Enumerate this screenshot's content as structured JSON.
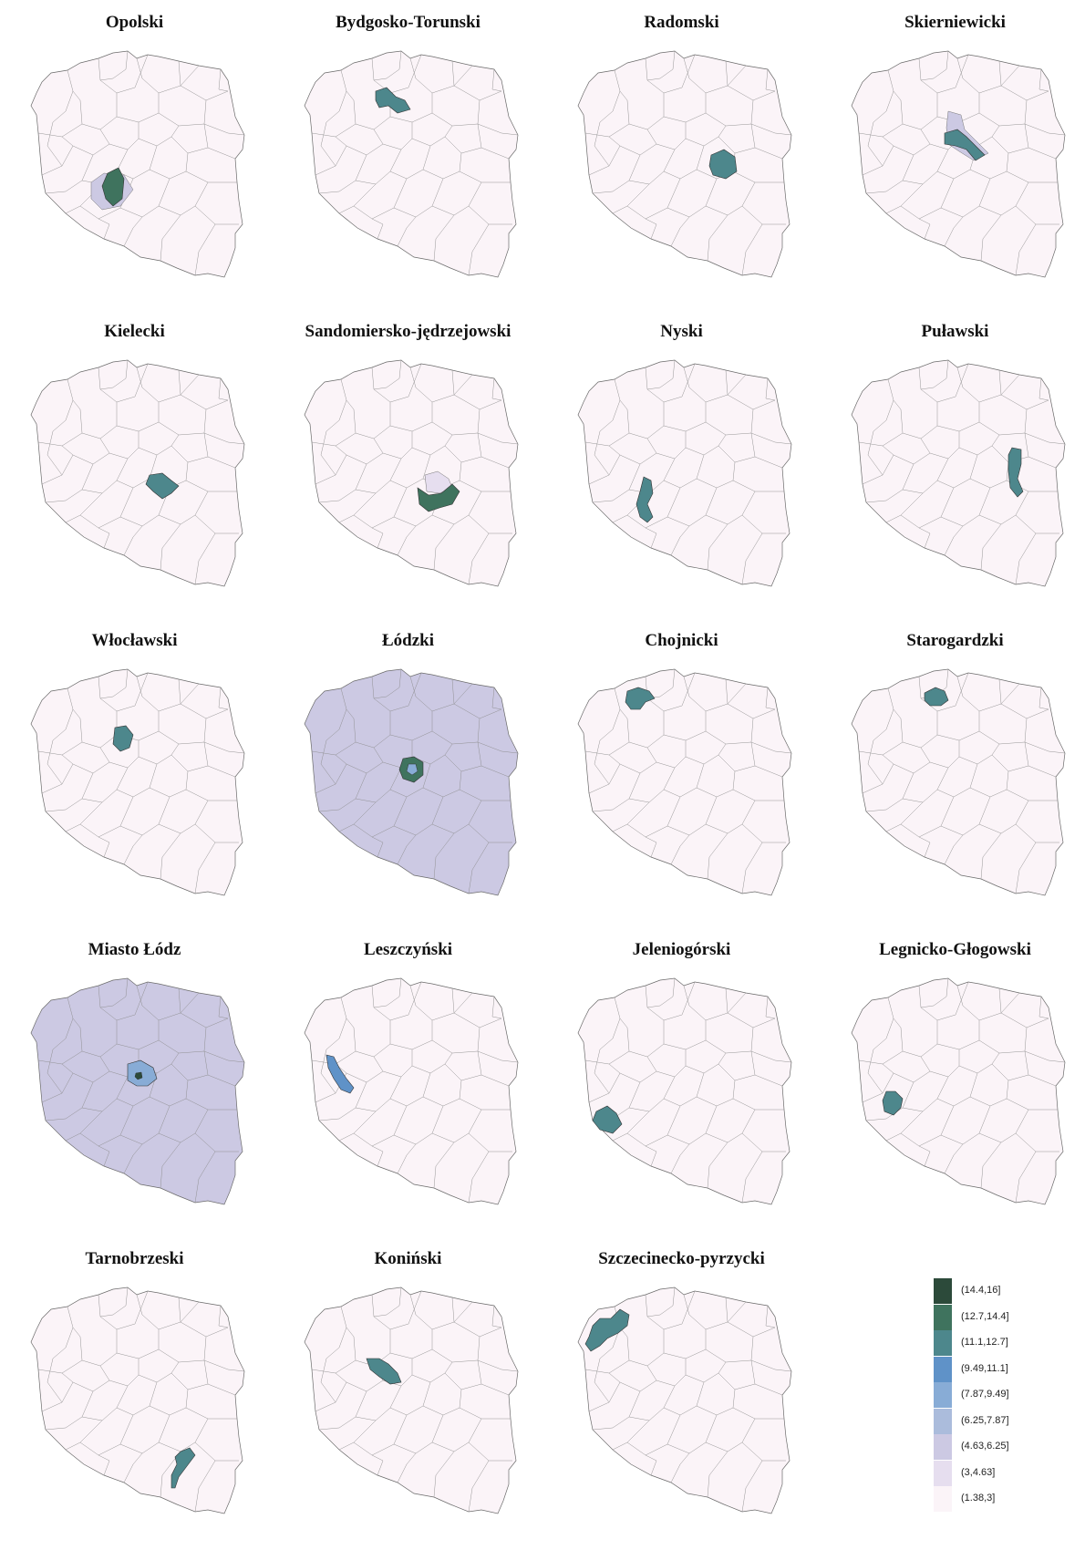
{
  "palette": [
    "#fbf4f8",
    "#e6deef",
    "#ccc9e3",
    "#abbcdc",
    "#88acd6",
    "#5f92c8",
    "#4d878c",
    "#3f735e",
    "#2c4a3a"
  ],
  "legend": {
    "labels": [
      "(14.4,16]",
      "(12.7,14.4]",
      "(11.1,12.7]",
      "(9.49,11.1]",
      "(7.87,9.49]",
      "(6.25,7.87]",
      "(4.63,6.25]",
      "(3,4.63]",
      "(1.38,3]"
    ]
  },
  "panels": [
    {
      "title": "Opolski",
      "background": 0,
      "highlight": {
        "shape": "opolski",
        "class": 7
      },
      "ring": {
        "shape": "ring_opolski",
        "class": 2
      }
    },
    {
      "title": "Bydgosko-Torunski",
      "background": 0,
      "highlight": {
        "shape": "bydgosko",
        "class": 6
      }
    },
    {
      "title": "Radomski",
      "background": 0,
      "highlight": {
        "shape": "radomski",
        "class": 6
      }
    },
    {
      "title": "Skierniewicki",
      "background": 0,
      "highlight": {
        "shape": "skierniewicki",
        "class": 6
      },
      "ring": {
        "shape": "ring_skier",
        "class": 2
      }
    },
    {
      "title": "Kielecki",
      "background": 0,
      "highlight": {
        "shape": "kielecki",
        "class": 6
      }
    },
    {
      "title": "Sandomiersko-jędrzejowski",
      "background": 0,
      "highlight": {
        "shape": "sandomiersko",
        "class": 7
      },
      "ring": {
        "shape": "ring_sando",
        "class": 1
      }
    },
    {
      "title": "Nyski",
      "background": 0,
      "highlight": {
        "shape": "nyski",
        "class": 6
      }
    },
    {
      "title": "Puławski",
      "background": 0,
      "highlight": {
        "shape": "pulawski",
        "class": 6
      }
    },
    {
      "title": "Włocławski",
      "background": 0,
      "highlight": {
        "shape": "wloclawski",
        "class": 6
      }
    },
    {
      "title": "Łódzki",
      "background": 2,
      "highlight": {
        "shape": "lodzki",
        "class": 7
      },
      "inner": {
        "shape": "inner_lodz",
        "class": 4
      }
    },
    {
      "title": "Chojnicki",
      "background": 0,
      "highlight": {
        "shape": "chojnicki",
        "class": 6
      }
    },
    {
      "title": "Starogardzki",
      "background": 0,
      "highlight": {
        "shape": "starogardzki",
        "class": 6
      }
    },
    {
      "title": "Miasto Łódz",
      "background": 2,
      "highlight": {
        "shape": "miasto_ring",
        "class": 4
      },
      "inner": {
        "shape": "miasto_core",
        "class": 8
      }
    },
    {
      "title": "Leszczyński",
      "background": 0,
      "highlight": {
        "shape": "leszczynski",
        "class": 5
      }
    },
    {
      "title": "Jeleniogórski",
      "background": 0,
      "highlight": {
        "shape": "jeleniogorski",
        "class": 6
      }
    },
    {
      "title": "Legnicko-Głogowski",
      "background": 0,
      "highlight": {
        "shape": "legnicko",
        "class": 6
      }
    },
    {
      "title": "Tarnobrzeski",
      "background": 0,
      "highlight": {
        "shape": "tarnobrzeski",
        "class": 6
      }
    },
    {
      "title": "Koniński",
      "background": 0,
      "highlight": {
        "shape": "koninski",
        "class": 6
      }
    },
    {
      "title": "Szczecinecko-pyrzycki",
      "background": 0,
      "highlight": {
        "shape": "szczecinecko",
        "class": 6
      }
    }
  ]
}
